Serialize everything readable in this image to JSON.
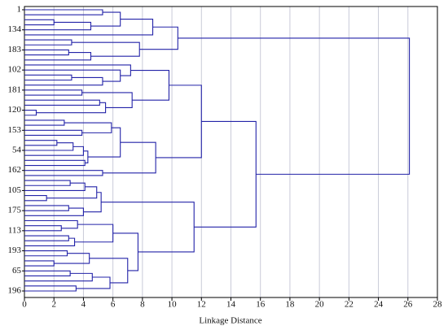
{
  "chart_data": {
    "type": "dendrogram",
    "xlabel": "Linkage Distance",
    "xlim": [
      0,
      28
    ],
    "xticks": [
      0,
      2,
      4,
      6,
      8,
      10,
      12,
      14,
      16,
      18,
      20,
      22,
      24,
      26,
      28
    ],
    "grid": true,
    "color": "#2323a8",
    "tree": {
      "height": 26.1,
      "children": [
        {
          "height": 10.4,
          "children": [
            {
              "height": 8.7,
              "children": [
                {
                  "height": 6.5,
                  "children": [
                    {
                      "height": 5.3,
                      "children": [
                        "1",
                        null
                      ]
                    },
                    {
                      "height": 4.5,
                      "children": [
                        {
                          "height": 2.0,
                          "children": [
                            null,
                            null
                          ]
                        },
                        "134"
                      ]
                    }
                  ]
                },
                null
              ]
            },
            {
              "height": 7.8,
              "children": [
                {
                  "height": 3.2,
                  "children": [
                    null,
                    null
                  ]
                },
                {
                  "height": 4.5,
                  "children": [
                    {
                      "height": 3.0,
                      "children": [
                        "183",
                        null
                      ]
                    },
                    null
                  ]
                }
              ]
            }
          ]
        },
        {
          "height": 15.7,
          "children": [
            {
              "height": 12.0,
              "children": [
                {
                  "height": 9.8,
                  "children": [
                    {
                      "height": 7.2,
                      "children": [
                        null,
                        {
                          "height": 6.5,
                          "children": [
                            "102",
                            {
                              "height": 5.3,
                              "children": [
                                {
                                  "height": 3.2,
                                  "children": [
                                    null,
                                    null
                                  ]
                                },
                                null
                              ]
                            }
                          ]
                        }
                      ]
                    },
                    {
                      "height": 7.3,
                      "children": [
                        {
                          "height": 3.9,
                          "children": [
                            "181",
                            null
                          ]
                        },
                        {
                          "height": 5.5,
                          "children": [
                            {
                              "height": 5.1,
                              "children": [
                                null,
                                null
                              ]
                            },
                            {
                              "height": 0.8,
                              "children": [
                                "120",
                                null
                              ]
                            }
                          ]
                        }
                      ]
                    }
                  ]
                },
                {
                  "height": 8.9,
                  "children": [
                    {
                      "height": 6.5,
                      "children": [
                        {
                          "height": 5.9,
                          "children": [
                            {
                              "height": 2.7,
                              "children": [
                                null,
                                null
                              ]
                            },
                            {
                              "height": 3.9,
                              "children": [
                                "153",
                                null
                              ]
                            }
                          ]
                        },
                        {
                          "height": 4.3,
                          "children": [
                            {
                              "height": 4.0,
                              "children": [
                                {
                                  "height": 3.3,
                                  "children": [
                                    {
                                      "height": 2.2,
                                      "children": [
                                        null,
                                        null
                                      ]
                                    },
                                    "54"
                                  ]
                                },
                                null
                              ]
                            },
                            {
                              "height": 4.1,
                              "children": [
                                null,
                                null
                              ]
                            }
                          ]
                        }
                      ]
                    },
                    {
                      "height": 5.3,
                      "children": [
                        "162",
                        null
                      ]
                    }
                  ]
                }
              ]
            },
            {
              "height": 11.5,
              "children": [
                {
                  "height": 5.2,
                  "children": [
                    {
                      "height": 4.9,
                      "children": [
                        {
                          "height": 4.1,
                          "children": [
                            {
                              "height": 3.1,
                              "children": [
                                null,
                                null
                              ]
                            },
                            "105"
                          ]
                        },
                        {
                          "height": 1.5,
                          "children": [
                            null,
                            null
                          ]
                        }
                      ]
                    },
                    {
                      "height": 4.0,
                      "children": [
                        {
                          "height": 3.0,
                          "children": [
                            null,
                            "175"
                          ]
                        },
                        null
                      ]
                    }
                  ]
                },
                {
                  "height": 7.7,
                  "children": [
                    {
                      "height": 6.0,
                      "children": [
                        {
                          "height": 3.6,
                          "children": [
                            null,
                            {
                              "height": 2.5,
                              "children": [
                                null,
                                "113"
                              ]
                            }
                          ]
                        },
                        {
                          "height": 3.4,
                          "children": [
                            {
                              "height": 3.0,
                              "children": [
                                null,
                                null
                              ]
                            },
                            null
                          ]
                        }
                      ]
                    },
                    {
                      "height": 7.0,
                      "children": [
                        {
                          "height": 4.4,
                          "children": [
                            {
                              "height": 2.9,
                              "children": [
                                "193",
                                null
                              ]
                            },
                            {
                              "height": 2.0,
                              "children": [
                                null,
                                null
                              ]
                            }
                          ]
                        },
                        {
                          "height": 5.8,
                          "children": [
                            {
                              "height": 4.6,
                              "children": [
                                {
                                  "height": 3.1,
                                  "children": [
                                    "65",
                                    null
                                  ]
                                },
                                null
                              ]
                            },
                            {
                              "height": 3.5,
                              "children": [
                                null,
                                "196"
                              ]
                            }
                          ]
                        }
                      ]
                    }
                  ]
                }
              ]
            }
          ]
        }
      ]
    }
  }
}
